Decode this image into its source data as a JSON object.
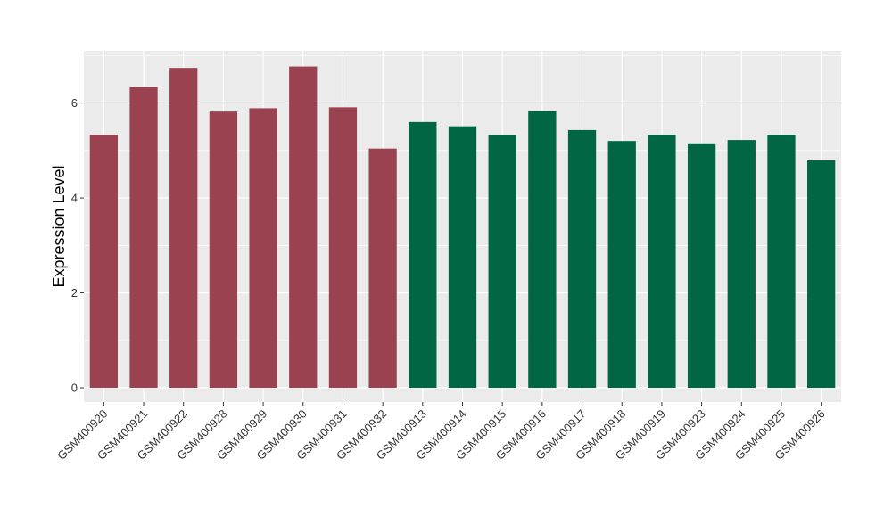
{
  "chart_data": {
    "type": "bar",
    "title": "",
    "xlabel": "",
    "ylabel": "Expression Level",
    "ylim": [
      -0.3,
      7.1
    ],
    "yticks": [
      0,
      2,
      4,
      6
    ],
    "grid": true,
    "legend": "none",
    "categories": [
      "GSM400920",
      "GSM400921",
      "GSM400922",
      "GSM400928",
      "GSM400929",
      "GSM400930",
      "GSM400931",
      "GSM400932",
      "GSM400913",
      "GSM400914",
      "GSM400915",
      "GSM400916",
      "GSM400917",
      "GSM400918",
      "GSM400919",
      "GSM400923",
      "GSM400924",
      "GSM400925",
      "GSM400926"
    ],
    "values": [
      5.33,
      6.33,
      6.74,
      5.82,
      5.89,
      6.77,
      5.91,
      5.04,
      5.6,
      5.51,
      5.32,
      5.83,
      5.43,
      5.2,
      5.33,
      5.15,
      5.22,
      5.33,
      4.79
    ],
    "groups": [
      0,
      0,
      0,
      0,
      0,
      0,
      0,
      0,
      1,
      1,
      1,
      1,
      1,
      1,
      1,
      1,
      1,
      1,
      1
    ],
    "group_colors": [
      "#9b4250",
      "#006643"
    ],
    "panel_background": "#ebebeb",
    "grid_color": "#ffffff"
  }
}
